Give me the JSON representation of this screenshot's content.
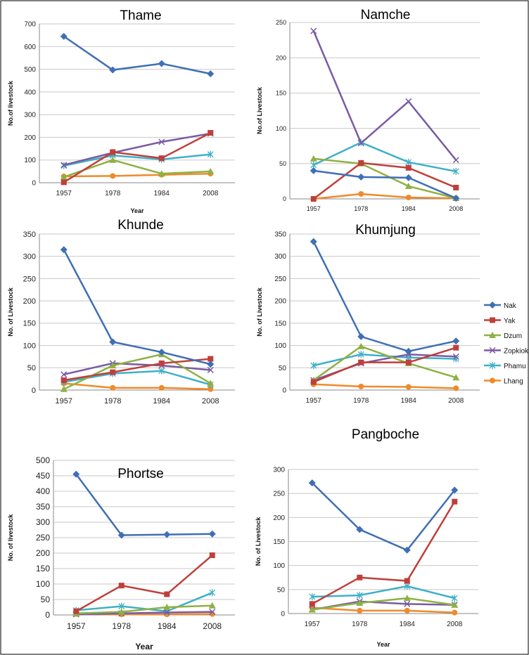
{
  "chart_data": [
    {
      "type": "line",
      "title": "Thame",
      "xlabel": "Year",
      "ylabel": "No.of livestock",
      "categories": [
        "1957",
        "1978",
        "1984",
        "2008"
      ],
      "ylim": [
        0,
        700
      ],
      "yticks": [
        0,
        100,
        200,
        300,
        400,
        500,
        600,
        700
      ],
      "series": [
        {
          "name": "Nak",
          "values": [
            645,
            497,
            525,
            480
          ]
        },
        {
          "name": "Yak",
          "values": [
            2,
            135,
            108,
            220
          ]
        },
        {
          "name": "Dzum",
          "values": [
            25,
            100,
            40,
            50
          ]
        },
        {
          "name": "Zopkiok",
          "values": [
            78,
            132,
            180,
            217
          ]
        },
        {
          "name": "Phamu",
          "values": [
            75,
            120,
            103,
            125
          ]
        },
        {
          "name": "Lhang",
          "values": [
            28,
            30,
            35,
            40
          ]
        }
      ]
    },
    {
      "type": "line",
      "title": "Namche",
      "xlabel": "",
      "ylabel": "No.of Livestock",
      "categories": [
        "1957",
        "1978",
        "1984",
        "2008"
      ],
      "ylim": [
        0,
        250
      ],
      "yticks": [
        0,
        50,
        100,
        150,
        200,
        250
      ],
      "series": [
        {
          "name": "Nak",
          "values": [
            40,
            31,
            30,
            1
          ]
        },
        {
          "name": "Yak",
          "values": [
            0,
            51,
            44,
            16
          ]
        },
        {
          "name": "Dzum",
          "values": [
            57,
            50,
            18,
            1
          ]
        },
        {
          "name": "Zopkiok",
          "values": [
            238,
            79,
            138,
            55
          ]
        },
        {
          "name": "Phamu",
          "values": [
            48,
            80,
            52,
            39
          ]
        },
        {
          "name": "Lhang",
          "values": [
            0,
            7,
            2,
            1
          ]
        }
      ]
    },
    {
      "type": "line",
      "title": "Khunde",
      "xlabel": "",
      "ylabel": "No. of Livestock",
      "categories": [
        "1957",
        "1978",
        "1984",
        "2008"
      ],
      "ylim": [
        0,
        350
      ],
      "yticks": [
        0,
        50,
        100,
        150,
        200,
        250,
        300,
        350
      ],
      "series": [
        {
          "name": "Nak",
          "values": [
            315,
            108,
            85,
            58
          ]
        },
        {
          "name": "Yak",
          "values": [
            22,
            40,
            60,
            70
          ]
        },
        {
          "name": "Dzum",
          "values": [
            2,
            55,
            80,
            15
          ]
        },
        {
          "name": "Zopkiok",
          "values": [
            35,
            60,
            55,
            45
          ]
        },
        {
          "name": "Phamu",
          "values": [
            18,
            37,
            43,
            12
          ]
        },
        {
          "name": "Lhang",
          "values": [
            15,
            5,
            5,
            2
          ]
        }
      ]
    },
    {
      "type": "line",
      "title": "Khumjung",
      "xlabel": "",
      "ylabel": "No. of Livestock",
      "categories": [
        "1957",
        "1978",
        "1984",
        "2008"
      ],
      "ylim": [
        0,
        350
      ],
      "yticks": [
        0,
        50,
        100,
        150,
        200,
        250,
        300,
        350
      ],
      "legend": "right",
      "series": [
        {
          "name": "Nak",
          "values": [
            333,
            120,
            87,
            110
          ]
        },
        {
          "name": "Yak",
          "values": [
            18,
            62,
            62,
            95
          ]
        },
        {
          "name": "Dzum",
          "values": [
            22,
            98,
            60,
            28
          ]
        },
        {
          "name": "Zopkiok",
          "values": [
            22,
            60,
            80,
            75
          ]
        },
        {
          "name": "Phamu",
          "values": [
            55,
            80,
            73,
            70
          ]
        },
        {
          "name": "Lhang",
          "values": [
            13,
            8,
            7,
            4
          ]
        }
      ]
    },
    {
      "type": "line",
      "title": "Phortse",
      "xlabel": "Year",
      "ylabel": "No. of livestock",
      "categories": [
        "1957",
        "1978",
        "1984",
        "2008"
      ],
      "ylim": [
        0,
        500
      ],
      "yticks": [
        0,
        50,
        100,
        150,
        200,
        250,
        300,
        350,
        400,
        450,
        500
      ],
      "series": [
        {
          "name": "Nak",
          "values": [
            455,
            258,
            260,
            262
          ]
        },
        {
          "name": "Yak",
          "values": [
            12,
            95,
            67,
            193
          ]
        },
        {
          "name": "Dzum",
          "values": [
            5,
            10,
            25,
            30
          ]
        },
        {
          "name": "Zopkiok",
          "values": [
            2,
            5,
            8,
            10
          ]
        },
        {
          "name": "Phamu",
          "values": [
            15,
            28,
            12,
            72
          ]
        },
        {
          "name": "Lhang",
          "values": [
            3,
            2,
            2,
            3
          ]
        }
      ]
    },
    {
      "type": "line",
      "title": "Pangboche",
      "xlabel": "Year",
      "ylabel": "No. of Livestock",
      "categories": [
        "1957",
        "1978",
        "1984",
        "2008"
      ],
      "ylim": [
        0,
        300
      ],
      "yticks": [
        0,
        50,
        100,
        150,
        200,
        250,
        300
      ],
      "series": [
        {
          "name": "Nak",
          "values": [
            272,
            175,
            132,
            257
          ]
        },
        {
          "name": "Yak",
          "values": [
            20,
            75,
            68,
            233
          ]
        },
        {
          "name": "Dzum",
          "values": [
            8,
            22,
            32,
            18
          ]
        },
        {
          "name": "Zopkiok",
          "values": [
            8,
            25,
            20,
            18
          ]
        },
        {
          "name": "Phamu",
          "values": [
            35,
            38,
            57,
            32
          ]
        },
        {
          "name": "Lhang",
          "values": [
            12,
            6,
            6,
            2
          ]
        }
      ]
    }
  ],
  "legend": {
    "items": [
      {
        "name": "Nak",
        "color": "#3f6fb5",
        "marker": "diamond"
      },
      {
        "name": "Yak",
        "color": "#bf3f3a",
        "marker": "square"
      },
      {
        "name": "Dzum",
        "color": "#8fb143",
        "marker": "triangle"
      },
      {
        "name": "Zopkiok",
        "color": "#7a5ba3",
        "marker": "x"
      },
      {
        "name": "Phamu",
        "color": "#3fb0c7",
        "marker": "star"
      },
      {
        "name": "Lhang",
        "color": "#ef8a2b",
        "marker": "circle"
      }
    ]
  }
}
